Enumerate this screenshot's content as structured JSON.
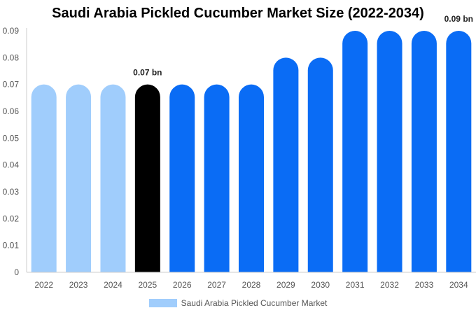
{
  "chart_data": {
    "type": "bar",
    "title": "Saudi Arabia Pickled Cucumber Market Size (2022-2034)",
    "categories": [
      "2022",
      "2023",
      "2024",
      "2025",
      "2026",
      "2027",
      "2028",
      "2029",
      "2030",
      "2031",
      "2032",
      "2033",
      "2034"
    ],
    "series": [
      {
        "name": "Saudi Arabia Pickled Cucumber Market",
        "values": [
          0.07,
          0.07,
          0.07,
          0.07,
          0.07,
          0.07,
          0.07,
          0.08,
          0.08,
          0.09,
          0.09,
          0.09,
          0.09
        ]
      }
    ],
    "bar_colors": [
      "#a0cdfc",
      "#a0cdfc",
      "#a0cdfc",
      "#000000",
      "#0a6cf5",
      "#0a6cf5",
      "#0a6cf5",
      "#0a6cf5",
      "#0a6cf5",
      "#0a6cf5",
      "#0a6cf5",
      "#0a6cf5",
      "#0a6cf5"
    ],
    "yticks": [
      "0",
      "0.01",
      "0.02",
      "0.03",
      "0.04",
      "0.05",
      "0.06",
      "0.07",
      "0.08",
      "0.09"
    ],
    "ylim": [
      0,
      0.09
    ],
    "data_labels": [
      {
        "index": 3,
        "text": "0.07 bn"
      },
      {
        "index": 12,
        "text": "0.09 bn"
      }
    ],
    "legend": {
      "label": "Saudi Arabia Pickled Cucumber Market",
      "color": "#a0cdfc",
      "position": "bottom"
    },
    "grid": false
  }
}
